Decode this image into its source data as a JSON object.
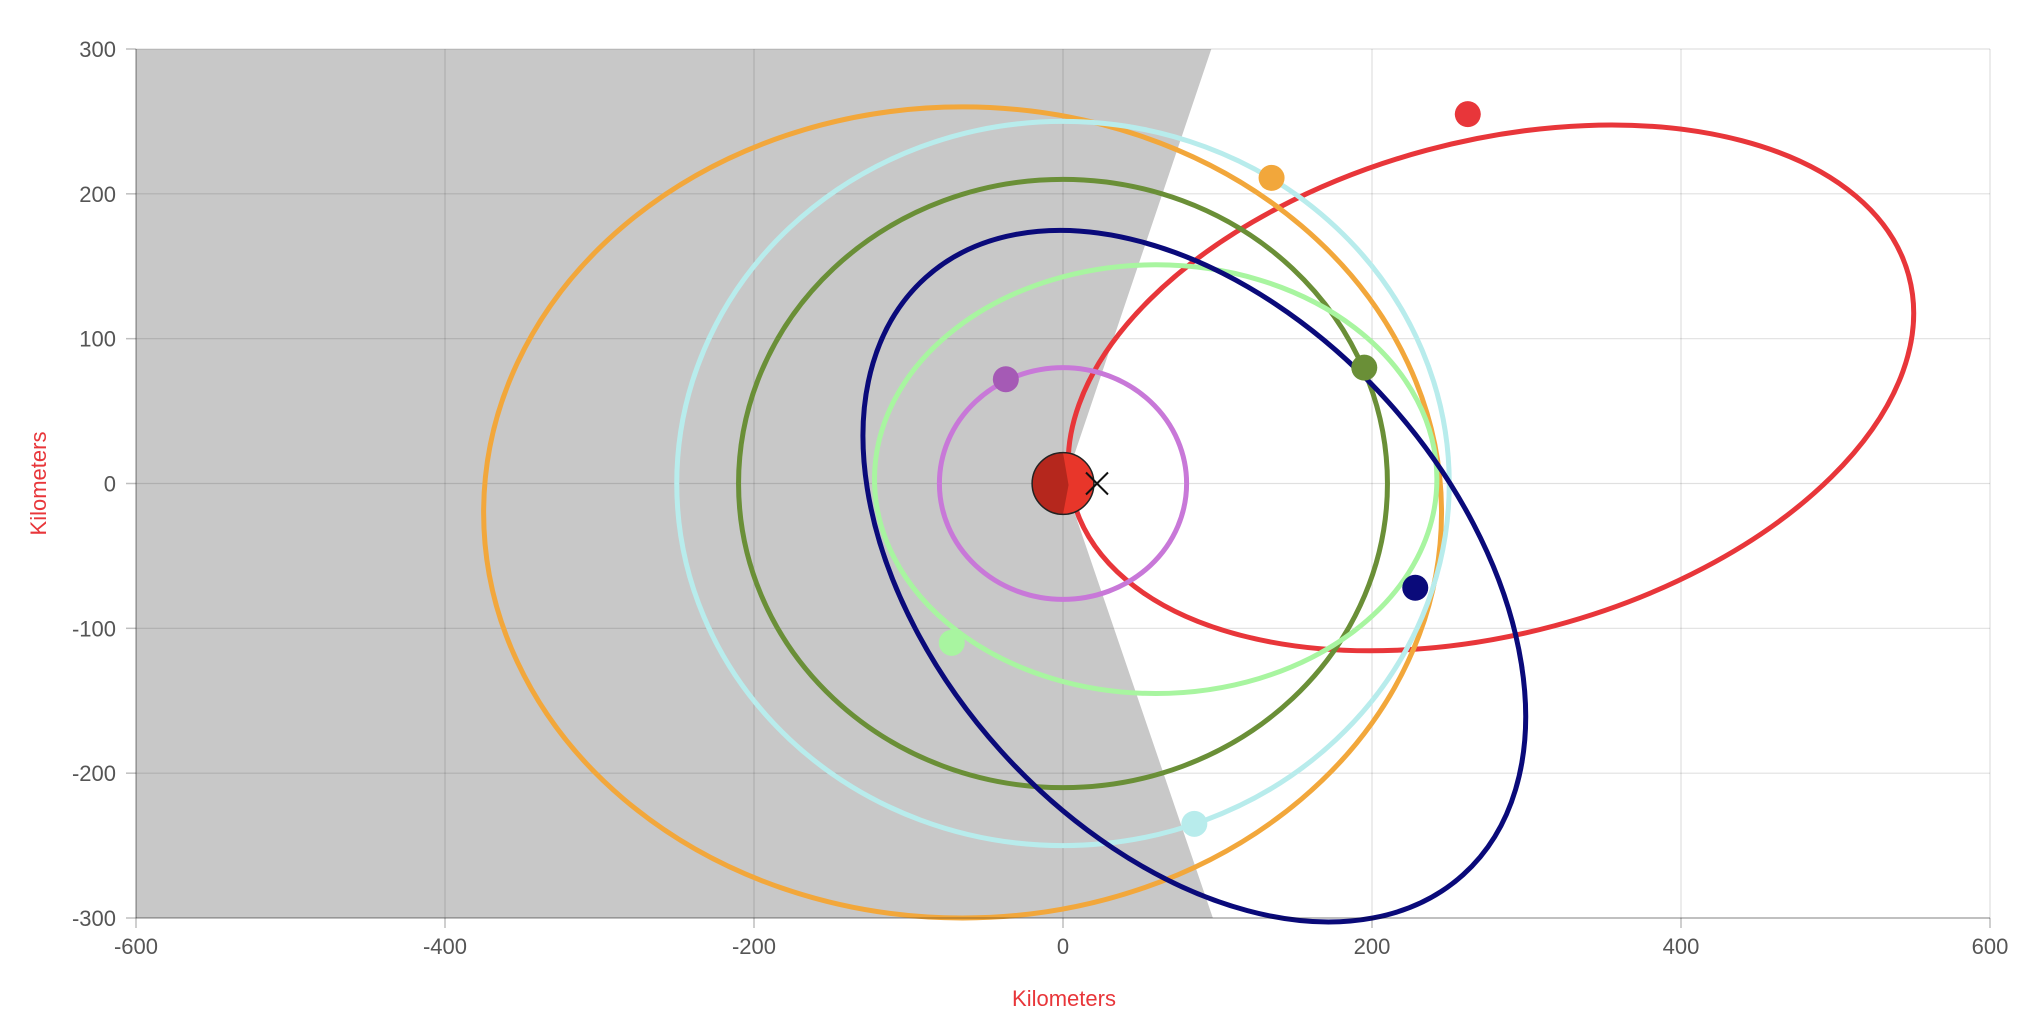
{
  "chart_data": {
    "type": "scatter",
    "title": "",
    "xlabel": "Kilometers",
    "ylabel": "Kilometers",
    "axis_title_color": "#e8363a",
    "xlim": [
      -600,
      600
    ],
    "ylim": [
      -300,
      300
    ],
    "x_ticks": [
      -600,
      -400,
      -200,
      0,
      200,
      400,
      600
    ],
    "y_ticks": [
      -300,
      -200,
      -100,
      0,
      100,
      200,
      300
    ],
    "x_tick_labels": [
      "-600",
      "-400",
      "-200",
      "0",
      "200",
      "400",
      "600"
    ],
    "y_tick_labels": [
      "-300",
      "-200",
      "-100",
      "0",
      "100",
      "200",
      "300"
    ],
    "grid": true,
    "legend": "none",
    "shadow_region": {
      "color": "#c8c8c8",
      "polygon": [
        [
          -600,
          300
        ],
        [
          96,
          300
        ],
        [
          1,
          0
        ],
        [
          97,
          -300
        ],
        [
          -600,
          -300
        ]
      ]
    },
    "central_body": {
      "center": [
        0,
        0
      ],
      "radius": 20,
      "dark_color": "#b5271d",
      "light_color": "#e8362a"
    },
    "marker": {
      "symbol": "x",
      "position": [
        22,
        0
      ]
    },
    "orbits": [
      {
        "color": "#e8363a",
        "center": [
          277,
          66
        ],
        "rx": 280,
        "ry": 170,
        "rotation_deg": 15,
        "satellite": [
          262,
          255
        ]
      },
      {
        "color": "#f2a73b",
        "center": [
          -65,
          -20
        ],
        "rx": 310,
        "ry": 280,
        "rotation_deg": 0,
        "satellite": [
          135,
          211
        ]
      },
      {
        "color": "#b8ecec",
        "center": [
          0,
          0
        ],
        "rx": 250,
        "ry": 250,
        "rotation_deg": 0,
        "satellite": [
          85,
          -235
        ]
      },
      {
        "color": "#6a8f37",
        "center": [
          0,
          0
        ],
        "rx": 210,
        "ry": 210,
        "rotation_deg": 0,
        "satellite": [
          195,
          80
        ]
      },
      {
        "color": "#a8f5a0",
        "center": [
          60,
          3
        ],
        "rx": 182,
        "ry": 148,
        "rotation_deg": 0,
        "satellite": [
          -72,
          -110
        ]
      },
      {
        "color": "#0a0a7a",
        "center": [
          85,
          -64
        ],
        "rx": 260,
        "ry": 180,
        "rotation_deg": -48,
        "satellite": [
          228,
          -72
        ]
      },
      {
        "color": "#c878d8",
        "center": [
          0,
          0
        ],
        "rx": 80,
        "ry": 80,
        "rotation_deg": 0,
        "satellite": [
          -37,
          72
        ],
        "satellite_color": "#a55ab5"
      }
    ]
  }
}
